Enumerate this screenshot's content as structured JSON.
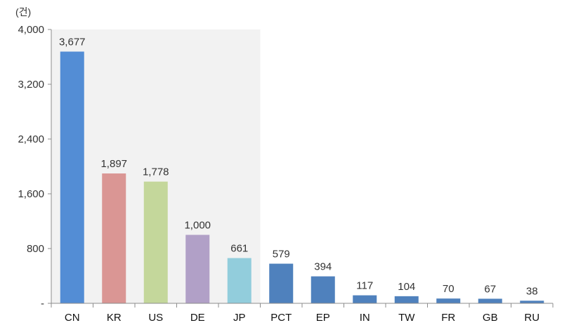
{
  "chart_data": {
    "type": "bar",
    "unit_label": "(건)",
    "categories": [
      "CN",
      "KR",
      "US",
      "DE",
      "JP",
      "PCT",
      "EP",
      "IN",
      "TW",
      "FR",
      "GB",
      "RU"
    ],
    "values": [
      3677,
      1897,
      1778,
      1000,
      661,
      579,
      394,
      117,
      104,
      70,
      67,
      38
    ],
    "value_labels": [
      "3,677",
      "1,897",
      "1,778",
      "1,000",
      "661",
      "579",
      "394",
      "117",
      "104",
      "70",
      "67",
      "38"
    ],
    "bar_colors": [
      "#538dd5",
      "#da9694",
      "#c4d79b",
      "#b1a0c7",
      "#92cddc",
      "#4f81bd",
      "#4f81bd",
      "#4f81bd",
      "#4f81bd",
      "#4f81bd",
      "#4f81bd",
      "#4f81bd"
    ],
    "highlight_categories": [
      "CN",
      "KR",
      "US",
      "DE",
      "JP"
    ],
    "highlight_color": "#f2f2f2",
    "ylim": [
      0,
      4000
    ],
    "y_ticks": [
      0,
      800,
      1600,
      2400,
      3200,
      4000
    ],
    "y_tick_labels": [
      "-",
      "800",
      "1,600",
      "2,400",
      "3,200",
      "4,000"
    ],
    "title": "",
    "xlabel": "",
    "ylabel": "",
    "grid": false,
    "legend": "none"
  }
}
